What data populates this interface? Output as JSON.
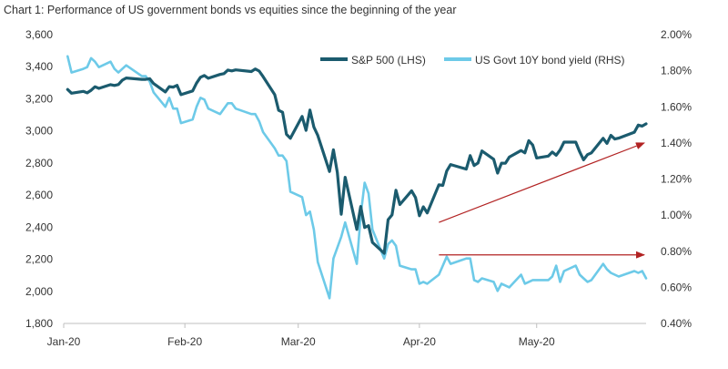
{
  "chart_data": {
    "type": "line",
    "title": "Chart 1: Performance of US government bonds vs equities since the beginning of the year",
    "x_tick_labels": [
      "Jan-20",
      "Feb-20",
      "Mar-20",
      "Apr-20",
      "May-20"
    ],
    "x_ticks": [
      "2020-01-01",
      "2020-02-01",
      "2020-03-01",
      "2020-04-01",
      "2020-05-01"
    ],
    "x_range": [
      "2020-01-01",
      "2020-05-29"
    ],
    "y_left": {
      "label": "",
      "range": [
        1800,
        3600
      ],
      "ticks": [
        1800,
        2000,
        2200,
        2400,
        2600,
        2800,
        3000,
        3200,
        3400,
        3600
      ],
      "tick_labels": [
        "1,800",
        "2,000",
        "2,200",
        "2,400",
        "2,600",
        "2,800",
        "3,000",
        "3,200",
        "3,400",
        "3,600"
      ]
    },
    "y_right": {
      "label": "",
      "range": [
        0.4,
        2.0
      ],
      "ticks": [
        0.4,
        0.6,
        0.8,
        1.0,
        1.2,
        1.4,
        1.6,
        1.8,
        2.0
      ],
      "tick_labels": [
        "0.40%",
        "0.60%",
        "0.80%",
        "1.00%",
        "1.20%",
        "1.40%",
        "1.60%",
        "1.80%",
        "2.00%"
      ]
    },
    "legend_position": "top-right",
    "grid": false,
    "series": [
      {
        "name": "S&P 500 (LHS)",
        "axis": "left",
        "color": "#1b5b6e",
        "points": [
          [
            "2020-01-02",
            3258
          ],
          [
            "2020-01-03",
            3235
          ],
          [
            "2020-01-06",
            3246
          ],
          [
            "2020-01-07",
            3237
          ],
          [
            "2020-01-08",
            3253
          ],
          [
            "2020-01-09",
            3275
          ],
          [
            "2020-01-10",
            3265
          ],
          [
            "2020-01-13",
            3288
          ],
          [
            "2020-01-14",
            3283
          ],
          [
            "2020-01-15",
            3289
          ],
          [
            "2020-01-16",
            3316
          ],
          [
            "2020-01-17",
            3330
          ],
          [
            "2020-01-21",
            3321
          ],
          [
            "2020-01-22",
            3321
          ],
          [
            "2020-01-23",
            3325
          ],
          [
            "2020-01-24",
            3295
          ],
          [
            "2020-01-27",
            3243
          ],
          [
            "2020-01-28",
            3276
          ],
          [
            "2020-01-29",
            3273
          ],
          [
            "2020-01-30",
            3284
          ],
          [
            "2020-01-31",
            3226
          ],
          [
            "2020-02-03",
            3249
          ],
          [
            "2020-02-04",
            3298
          ],
          [
            "2020-02-05",
            3334
          ],
          [
            "2020-02-06",
            3345
          ],
          [
            "2020-02-07",
            3328
          ],
          [
            "2020-02-10",
            3352
          ],
          [
            "2020-02-11",
            3357
          ],
          [
            "2020-02-12",
            3379
          ],
          [
            "2020-02-13",
            3374
          ],
          [
            "2020-02-14",
            3380
          ],
          [
            "2020-02-18",
            3370
          ],
          [
            "2020-02-19",
            3386
          ],
          [
            "2020-02-20",
            3373
          ],
          [
            "2020-02-21",
            3338
          ],
          [
            "2020-02-24",
            3226
          ],
          [
            "2020-02-25",
            3128
          ],
          [
            "2020-02-26",
            3116
          ],
          [
            "2020-02-27",
            2979
          ],
          [
            "2020-02-28",
            2954
          ],
          [
            "2020-03-02",
            3090
          ],
          [
            "2020-03-03",
            3003
          ],
          [
            "2020-03-04",
            3130
          ],
          [
            "2020-03-05",
            3024
          ],
          [
            "2020-03-06",
            2972
          ],
          [
            "2020-03-09",
            2747
          ],
          [
            "2020-03-10",
            2882
          ],
          [
            "2020-03-11",
            2741
          ],
          [
            "2020-03-12",
            2481
          ],
          [
            "2020-03-13",
            2711
          ],
          [
            "2020-03-16",
            2386
          ],
          [
            "2020-03-17",
            2529
          ],
          [
            "2020-03-18",
            2398
          ],
          [
            "2020-03-19",
            2409
          ],
          [
            "2020-03-20",
            2305
          ],
          [
            "2020-03-23",
            2237
          ],
          [
            "2020-03-24",
            2447
          ],
          [
            "2020-03-25",
            2476
          ],
          [
            "2020-03-26",
            2630
          ],
          [
            "2020-03-27",
            2541
          ],
          [
            "2020-03-30",
            2627
          ],
          [
            "2020-03-31",
            2585
          ],
          [
            "2020-04-01",
            2471
          ],
          [
            "2020-04-02",
            2527
          ],
          [
            "2020-04-03",
            2489
          ],
          [
            "2020-04-06",
            2664
          ],
          [
            "2020-04-07",
            2660
          ],
          [
            "2020-04-08",
            2750
          ],
          [
            "2020-04-09",
            2790
          ],
          [
            "2020-04-13",
            2762
          ],
          [
            "2020-04-14",
            2846
          ],
          [
            "2020-04-15",
            2784
          ],
          [
            "2020-04-16",
            2800
          ],
          [
            "2020-04-17",
            2875
          ],
          [
            "2020-04-20",
            2823
          ],
          [
            "2020-04-21",
            2737
          ],
          [
            "2020-04-22",
            2799
          ],
          [
            "2020-04-23",
            2798
          ],
          [
            "2020-04-24",
            2837
          ],
          [
            "2020-04-27",
            2878
          ],
          [
            "2020-04-28",
            2863
          ],
          [
            "2020-04-29",
            2939
          ],
          [
            "2020-04-30",
            2912
          ],
          [
            "2020-05-01",
            2831
          ],
          [
            "2020-05-04",
            2843
          ],
          [
            "2020-05-05",
            2868
          ],
          [
            "2020-05-06",
            2848
          ],
          [
            "2020-05-07",
            2881
          ],
          [
            "2020-05-08",
            2930
          ],
          [
            "2020-05-11",
            2930
          ],
          [
            "2020-05-12",
            2870
          ],
          [
            "2020-05-13",
            2820
          ],
          [
            "2020-05-14",
            2852
          ],
          [
            "2020-05-15",
            2863
          ],
          [
            "2020-05-18",
            2954
          ],
          [
            "2020-05-19",
            2922
          ],
          [
            "2020-05-20",
            2972
          ],
          [
            "2020-05-21",
            2949
          ],
          [
            "2020-05-22",
            2955
          ],
          [
            "2020-05-26",
            2992
          ],
          [
            "2020-05-27",
            3036
          ],
          [
            "2020-05-28",
            3030
          ],
          [
            "2020-05-29",
            3044
          ]
        ]
      },
      {
        "name": "US Govt 10Y bond yield (RHS)",
        "axis": "right",
        "color": "#6dcae8",
        "points": [
          [
            "2020-01-02",
            1.88
          ],
          [
            "2020-01-03",
            1.79
          ],
          [
            "2020-01-06",
            1.81
          ],
          [
            "2020-01-07",
            1.82
          ],
          [
            "2020-01-08",
            1.87
          ],
          [
            "2020-01-09",
            1.85
          ],
          [
            "2020-01-10",
            1.82
          ],
          [
            "2020-01-13",
            1.85
          ],
          [
            "2020-01-14",
            1.81
          ],
          [
            "2020-01-15",
            1.79
          ],
          [
            "2020-01-16",
            1.81
          ],
          [
            "2020-01-17",
            1.83
          ],
          [
            "2020-01-21",
            1.77
          ],
          [
            "2020-01-22",
            1.77
          ],
          [
            "2020-01-23",
            1.74
          ],
          [
            "2020-01-24",
            1.68
          ],
          [
            "2020-01-27",
            1.6
          ],
          [
            "2020-01-28",
            1.65
          ],
          [
            "2020-01-29",
            1.59
          ],
          [
            "2020-01-30",
            1.59
          ],
          [
            "2020-01-31",
            1.51
          ],
          [
            "2020-02-03",
            1.53
          ],
          [
            "2020-02-04",
            1.6
          ],
          [
            "2020-02-05",
            1.65
          ],
          [
            "2020-02-06",
            1.64
          ],
          [
            "2020-02-07",
            1.59
          ],
          [
            "2020-02-10",
            1.56
          ],
          [
            "2020-02-11",
            1.59
          ],
          [
            "2020-02-12",
            1.62
          ],
          [
            "2020-02-13",
            1.62
          ],
          [
            "2020-02-14",
            1.59
          ],
          [
            "2020-02-18",
            1.56
          ],
          [
            "2020-02-19",
            1.56
          ],
          [
            "2020-02-20",
            1.52
          ],
          [
            "2020-02-21",
            1.46
          ],
          [
            "2020-02-24",
            1.37
          ],
          [
            "2020-02-25",
            1.33
          ],
          [
            "2020-02-26",
            1.33
          ],
          [
            "2020-02-27",
            1.3
          ],
          [
            "2020-02-28",
            1.13
          ],
          [
            "2020-03-02",
            1.1
          ],
          [
            "2020-03-03",
            1.0
          ],
          [
            "2020-03-04",
            1.02
          ],
          [
            "2020-03-05",
            0.92
          ],
          [
            "2020-03-06",
            0.74
          ],
          [
            "2020-03-09",
            0.54
          ],
          [
            "2020-03-10",
            0.76
          ],
          [
            "2020-03-11",
            0.82
          ],
          [
            "2020-03-12",
            0.88
          ],
          [
            "2020-03-13",
            0.96
          ],
          [
            "2020-03-16",
            0.73
          ],
          [
            "2020-03-17",
            1.0
          ],
          [
            "2020-03-18",
            1.18
          ],
          [
            "2020-03-19",
            1.12
          ],
          [
            "2020-03-20",
            0.92
          ],
          [
            "2020-03-23",
            0.76
          ],
          [
            "2020-03-24",
            0.84
          ],
          [
            "2020-03-25",
            0.86
          ],
          [
            "2020-03-26",
            0.83
          ],
          [
            "2020-03-27",
            0.72
          ],
          [
            "2020-03-30",
            0.7
          ],
          [
            "2020-03-31",
            0.7
          ],
          [
            "2020-04-01",
            0.62
          ],
          [
            "2020-04-02",
            0.63
          ],
          [
            "2020-04-03",
            0.62
          ],
          [
            "2020-04-06",
            0.67
          ],
          [
            "2020-04-07",
            0.72
          ],
          [
            "2020-04-08",
            0.77
          ],
          [
            "2020-04-09",
            0.73
          ],
          [
            "2020-04-13",
            0.76
          ],
          [
            "2020-04-14",
            0.76
          ],
          [
            "2020-04-15",
            0.64
          ],
          [
            "2020-04-16",
            0.63
          ],
          [
            "2020-04-17",
            0.65
          ],
          [
            "2020-04-20",
            0.63
          ],
          [
            "2020-04-21",
            0.58
          ],
          [
            "2020-04-22",
            0.62
          ],
          [
            "2020-04-23",
            0.61
          ],
          [
            "2020-04-24",
            0.6
          ],
          [
            "2020-04-27",
            0.67
          ],
          [
            "2020-04-28",
            0.62
          ],
          [
            "2020-04-29",
            0.63
          ],
          [
            "2020-04-30",
            0.64
          ],
          [
            "2020-05-01",
            0.64
          ],
          [
            "2020-05-04",
            0.64
          ],
          [
            "2020-05-05",
            0.66
          ],
          [
            "2020-05-06",
            0.72
          ],
          [
            "2020-05-07",
            0.63
          ],
          [
            "2020-05-08",
            0.69
          ],
          [
            "2020-05-11",
            0.72
          ],
          [
            "2020-05-12",
            0.67
          ],
          [
            "2020-05-13",
            0.65
          ],
          [
            "2020-05-14",
            0.63
          ],
          [
            "2020-05-15",
            0.64
          ],
          [
            "2020-05-18",
            0.73
          ],
          [
            "2020-05-19",
            0.7
          ],
          [
            "2020-05-20",
            0.68
          ],
          [
            "2020-05-21",
            0.67
          ],
          [
            "2020-05-22",
            0.66
          ],
          [
            "2020-05-26",
            0.69
          ],
          [
            "2020-05-27",
            0.68
          ],
          [
            "2020-05-28",
            0.69
          ],
          [
            "2020-05-29",
            0.65
          ]
        ]
      }
    ],
    "annotations": [
      {
        "type": "arrow",
        "axis": "right",
        "color": "#b22222",
        "from": [
          "2020-04-06",
          0.96
        ],
        "to": [
          "2020-05-29",
          1.4
        ]
      },
      {
        "type": "arrow",
        "axis": "right",
        "color": "#b22222",
        "from": [
          "2020-04-06",
          0.78
        ],
        "to": [
          "2020-05-29",
          0.78
        ]
      }
    ]
  }
}
